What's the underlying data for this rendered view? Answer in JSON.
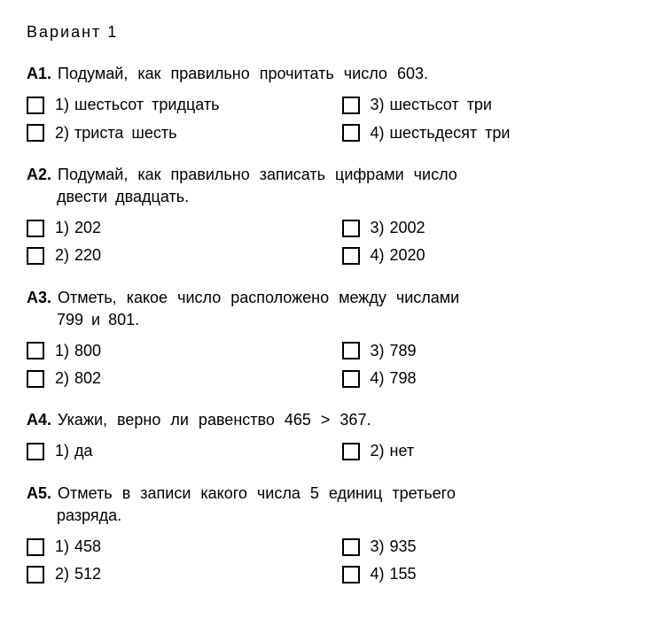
{
  "variant_title": "Вариант 1",
  "questions": [
    {
      "num": "А1.",
      "prompt": "Подумай, как правильно прочитать число 603.",
      "prompt2": "",
      "options": [
        {
          "n": "1)",
          "t": "шестьсот тридцать"
        },
        {
          "n": "3)",
          "t": "шестьсот три"
        },
        {
          "n": "2)",
          "t": "триста шесть"
        },
        {
          "n": "4)",
          "t": "шестьдесят три"
        }
      ]
    },
    {
      "num": "А2.",
      "prompt": "Подумай, как правильно записать цифрами число",
      "prompt2": "двести двадцать.",
      "options": [
        {
          "n": "1)",
          "t": "202"
        },
        {
          "n": "3)",
          "t": "2002"
        },
        {
          "n": "2)",
          "t": "220"
        },
        {
          "n": "4)",
          "t": "2020"
        }
      ]
    },
    {
      "num": "А3.",
      "prompt": "Отметь, какое число расположено между числами",
      "prompt2": "799 и 801.",
      "options": [
        {
          "n": "1)",
          "t": "800"
        },
        {
          "n": "3)",
          "t": "789"
        },
        {
          "n": "2)",
          "t": "802"
        },
        {
          "n": "4)",
          "t": "798"
        }
      ]
    },
    {
      "num": "А4.",
      "prompt": "Укажи, верно ли равенство 465 > 367.",
      "prompt2": "",
      "options": [
        {
          "n": "1)",
          "t": "да"
        },
        {
          "n": "2)",
          "t": "нет"
        }
      ]
    },
    {
      "num": "А5.",
      "prompt": "Отметь в записи какого числа 5 единиц третьего",
      "prompt2": "разряда.",
      "options": [
        {
          "n": "1)",
          "t": "458"
        },
        {
          "n": "3)",
          "t": "935"
        },
        {
          "n": "2)",
          "t": "512"
        },
        {
          "n": "4)",
          "t": "155"
        }
      ]
    }
  ]
}
